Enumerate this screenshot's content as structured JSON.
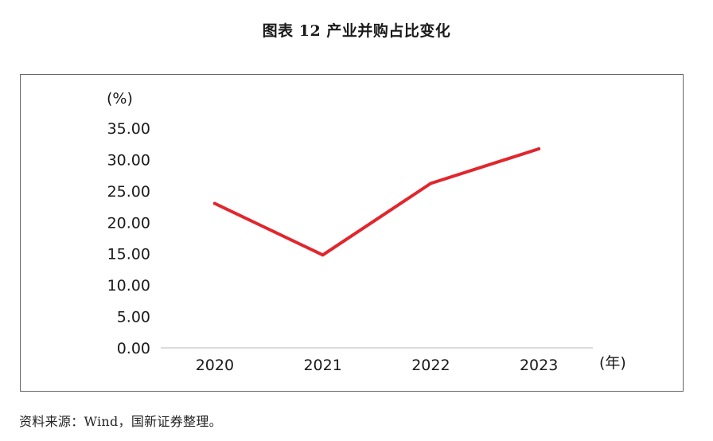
{
  "figure": {
    "title": "图表 12  产业并购占比变化",
    "source": "资料来源：Wind，国新证券整理。"
  },
  "chart_data": {
    "type": "line",
    "title": "图表 12  产业并购占比变化",
    "ylabel": "(%)",
    "xlabel": "(年)",
    "categories": [
      "2020",
      "2021",
      "2022",
      "2023"
    ],
    "series": [
      {
        "values": [
          23.0,
          14.8,
          26.2,
          31.7
        ],
        "color": "#e1262d"
      }
    ],
    "ylim": [
      0,
      35
    ],
    "yticks": [
      "0.00",
      "5.00",
      "10.00",
      "15.00",
      "20.00",
      "25.00",
      "30.00",
      "35.00"
    ],
    "grid": false,
    "legend": "none"
  }
}
